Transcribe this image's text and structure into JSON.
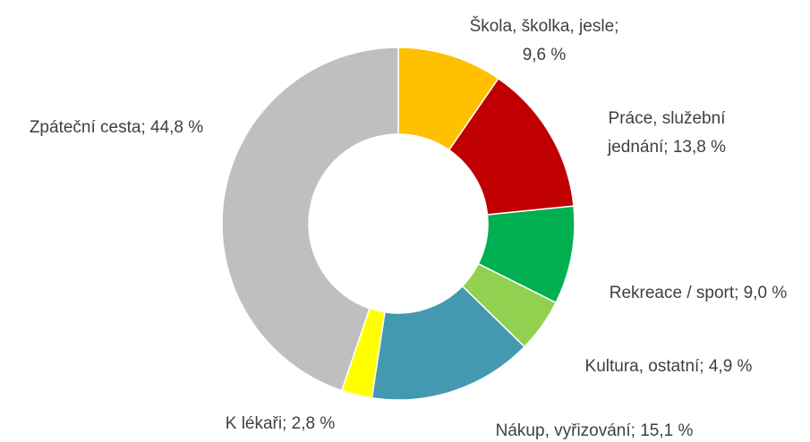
{
  "chart_data": {
    "type": "donut",
    "values": [
      9.6,
      13.8,
      9.0,
      4.9,
      15.1,
      2.8,
      44.8
    ],
    "value_labels": [
      [
        "Škola, školka, jesle;",
        "9,6 %"
      ],
      [
        "Práce, služební",
        "jednání; 13,8 %"
      ],
      [
        "Rekreace / sport; 9,0 %"
      ],
      [
        "Kultura, ostatní; 4,9 %"
      ],
      [
        "Nákup, vyřizování; 15,1 %"
      ],
      [
        "K lékaři; 2,8 %"
      ],
      [
        "Zpáteční cesta; 44,8 %"
      ]
    ],
    "colors": [
      "#FFC000",
      "#C00000",
      "#00B050",
      "#92D050",
      "#4499B0",
      "#FFFF00",
      "#BFBFBF"
    ]
  }
}
